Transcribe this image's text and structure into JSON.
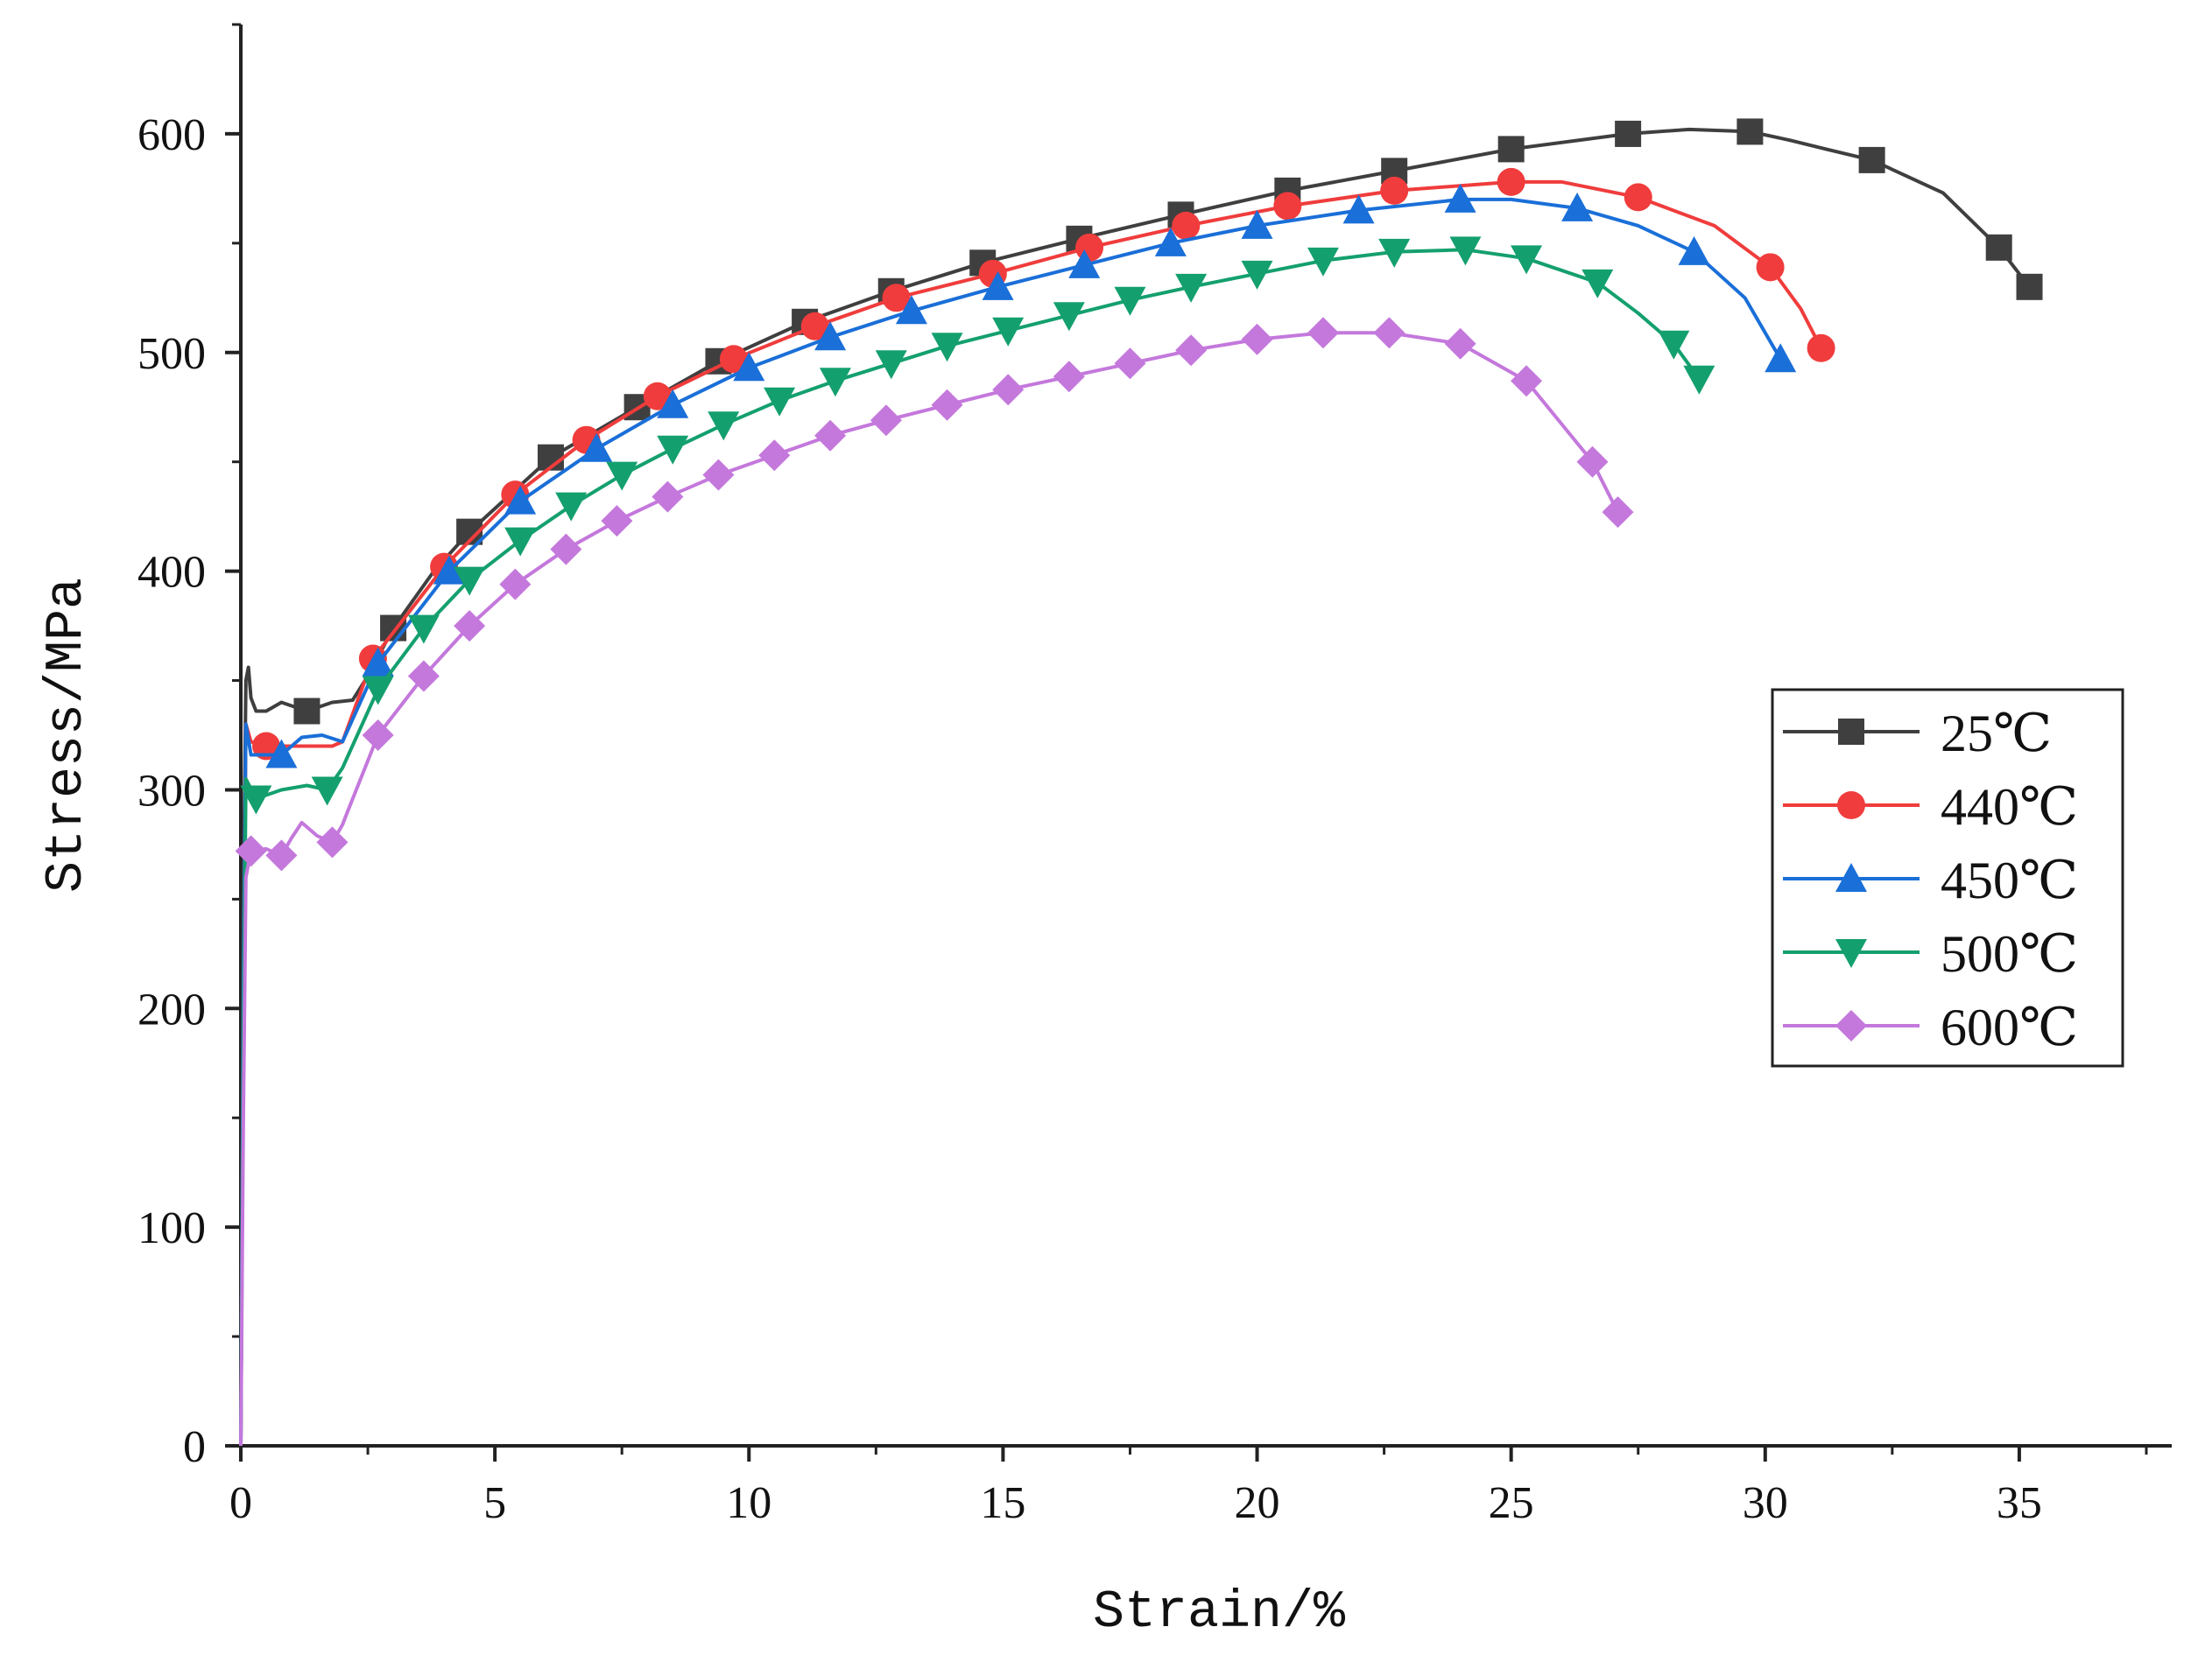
{
  "chart_data": {
    "type": "line",
    "title": "",
    "xlabel": "Strain/%",
    "ylabel": "Stress/MPa",
    "xlim": [
      0,
      38
    ],
    "ylim": [
      0,
      650
    ],
    "xticks": [
      0,
      5,
      10,
      15,
      20,
      25,
      30,
      35
    ],
    "yticks": [
      0,
      100,
      200,
      300,
      400,
      500,
      600
    ],
    "legend_position": "right",
    "series": [
      {
        "name": "25℃",
        "color": "#3f3f3f",
        "marker": "square",
        "x": [
          0,
          0.05,
          0.1,
          0.15,
          0.2,
          0.3,
          0.5,
          0.8,
          1.3,
          1.8,
          2.2,
          2.5,
          3.0,
          3.8,
          4.5,
          6.1,
          7.8,
          9.4,
          11.1,
          12.8,
          14.6,
          16.5,
          18.5,
          20.6,
          22.7,
          25.0,
          27.3,
          28.5,
          29.7,
          30.5,
          31.2,
          32.1,
          33.5,
          34.6,
          35.2
        ],
        "y": [
          0,
          250,
          350,
          356,
          342,
          336,
          336,
          340,
          336,
          340,
          341,
          352,
          374,
          400,
          418,
          452,
          475,
          496,
          514,
          528,
          541,
          552,
          563,
          574,
          583,
          593,
          600,
          602,
          601,
          597,
          593,
          588,
          573,
          548,
          530
        ],
        "markers_x": [
          1.3,
          3.0,
          4.5,
          6.1,
          7.8,
          9.4,
          11.1,
          12.8,
          14.6,
          16.5,
          18.5,
          20.6,
          22.7,
          25.0,
          27.3,
          29.7,
          32.1,
          34.6,
          35.2
        ],
        "markers_y": [
          336,
          374,
          418,
          452,
          475,
          496,
          514,
          528,
          541,
          552,
          563,
          574,
          583,
          593,
          600,
          601,
          588,
          548,
          530
        ]
      },
      {
        "name": "440℃",
        "color": "#f03c3c",
        "marker": "circle",
        "x": [
          0,
          0.05,
          0.1,
          0.2,
          0.5,
          1.0,
          1.5,
          1.8,
          2.0,
          2.6,
          4.0,
          5.4,
          6.8,
          8.2,
          9.7,
          11.3,
          12.9,
          14.8,
          16.7,
          18.6,
          20.6,
          22.7,
          25.0,
          26.0,
          27.5,
          29.0,
          30.1,
          30.7,
          31.1
        ],
        "y": [
          0,
          200,
          330,
          322,
          320,
          320,
          320,
          320,
          322,
          360,
          402,
          435,
          460,
          480,
          497,
          512,
          525,
          536,
          548,
          558,
          567,
          574,
          578,
          578,
          571,
          558,
          539,
          520,
          502
        ],
        "markers_x": [
          0.5,
          2.6,
          4.0,
          5.4,
          6.8,
          8.2,
          9.7,
          11.3,
          12.9,
          14.8,
          16.7,
          18.6,
          20.6,
          22.7,
          25.0,
          27.5,
          30.1,
          31.1
        ],
        "markers_y": [
          320,
          360,
          402,
          435,
          460,
          480,
          497,
          512,
          525,
          536,
          548,
          558,
          567,
          574,
          578,
          571,
          539,
          502
        ]
      },
      {
        "name": "450℃",
        "color": "#1a6fd8",
        "marker": "triangle-up",
        "x": [
          0,
          0.05,
          0.1,
          0.2,
          0.8,
          1.2,
          1.6,
          2.0,
          2.7,
          4.1,
          5.5,
          7.0,
          8.5,
          10.0,
          11.6,
          13.2,
          14.9,
          16.6,
          18.3,
          20.0,
          22.0,
          24.0,
          25.0,
          26.3,
          27.5,
          28.6,
          29.6,
          30.3
        ],
        "y": [
          0,
          210,
          330,
          316,
          316,
          324,
          325,
          322,
          358,
          400,
          432,
          456,
          476,
          493,
          507,
          519,
          530,
          540,
          550,
          558,
          565,
          570,
          570,
          566,
          558,
          546,
          525,
          497
        ],
        "markers_x": [
          0.8,
          2.7,
          4.1,
          5.5,
          7.0,
          8.5,
          10.0,
          11.6,
          13.2,
          14.9,
          16.6,
          18.3,
          20.0,
          22.0,
          24.0,
          26.3,
          28.6,
          30.3
        ],
        "markers_y": [
          316,
          358,
          400,
          432,
          456,
          476,
          493,
          507,
          519,
          530,
          540,
          550,
          558,
          565,
          570,
          566,
          546,
          497
        ]
      },
      {
        "name": "500℃",
        "color": "#14a06e",
        "marker": "triangle-down",
        "x": [
          0,
          0.05,
          0.1,
          0.3,
          0.8,
          1.3,
          1.7,
          2.0,
          2.7,
          3.6,
          4.5,
          5.5,
          6.5,
          7.5,
          8.5,
          9.5,
          10.6,
          11.7,
          12.8,
          13.9,
          15.1,
          16.3,
          17.5,
          18.7,
          20.0,
          21.3,
          22.7,
          24.1,
          25.3,
          26.7,
          27.5,
          28.2,
          28.7
        ],
        "y": [
          0,
          180,
          305,
          296,
          300,
          302,
          300,
          310,
          346,
          374,
          396,
          414,
          430,
          444,
          456,
          467,
          478,
          487,
          495,
          503,
          510,
          517,
          524,
          530,
          536,
          542,
          546,
          547,
          543,
          532,
          518,
          504,
          488
        ],
        "markers_x": [
          0.3,
          1.7,
          2.7,
          3.6,
          4.5,
          5.5,
          6.5,
          7.5,
          8.5,
          9.5,
          10.6,
          11.7,
          12.8,
          13.9,
          15.1,
          16.3,
          17.5,
          18.7,
          20.0,
          21.3,
          22.7,
          24.1,
          25.3,
          26.7,
          28.2,
          28.7
        ],
        "markers_y": [
          296,
          300,
          346,
          374,
          396,
          414,
          430,
          444,
          456,
          467,
          478,
          487,
          495,
          503,
          510,
          517,
          524,
          530,
          536,
          542,
          546,
          547,
          543,
          532,
          504,
          488
        ]
      },
      {
        "name": "600℃",
        "color": "#c478dc",
        "marker": "diamond",
        "x": [
          0,
          0.05,
          0.1,
          0.2,
          0.5,
          0.8,
          1.0,
          1.2,
          1.5,
          1.8,
          2.0,
          2.1,
          2.7,
          3.6,
          4.5,
          5.4,
          6.4,
          7.4,
          8.4,
          9.4,
          10.5,
          11.6,
          12.7,
          13.9,
          15.1,
          16.3,
          17.5,
          18.7,
          20.0,
          21.3,
          22.6,
          24.0,
          25.3,
          26.6,
          27.1
        ],
        "y": [
          0,
          150,
          260,
          272,
          273,
          270,
          278,
          285,
          279,
          276,
          284,
          290,
          325,
          352,
          375,
          394,
          410,
          423,
          434,
          444,
          453,
          462,
          469,
          476,
          483,
          489,
          495,
          501,
          506,
          509,
          509,
          504,
          487,
          450,
          427
        ],
        "markers_x": [
          0.2,
          0.8,
          1.8,
          2.7,
          3.6,
          4.5,
          5.4,
          6.4,
          7.4,
          8.4,
          9.4,
          10.5,
          11.6,
          12.7,
          13.9,
          15.1,
          16.3,
          17.5,
          18.7,
          20.0,
          21.3,
          22.6,
          24.0,
          25.3,
          26.6,
          27.1
        ],
        "markers_y": [
          272,
          270,
          276,
          325,
          352,
          375,
          394,
          410,
          423,
          434,
          444,
          453,
          462,
          469,
          476,
          483,
          489,
          495,
          501,
          506,
          509,
          509,
          504,
          487,
          450,
          427
        ]
      }
    ]
  }
}
